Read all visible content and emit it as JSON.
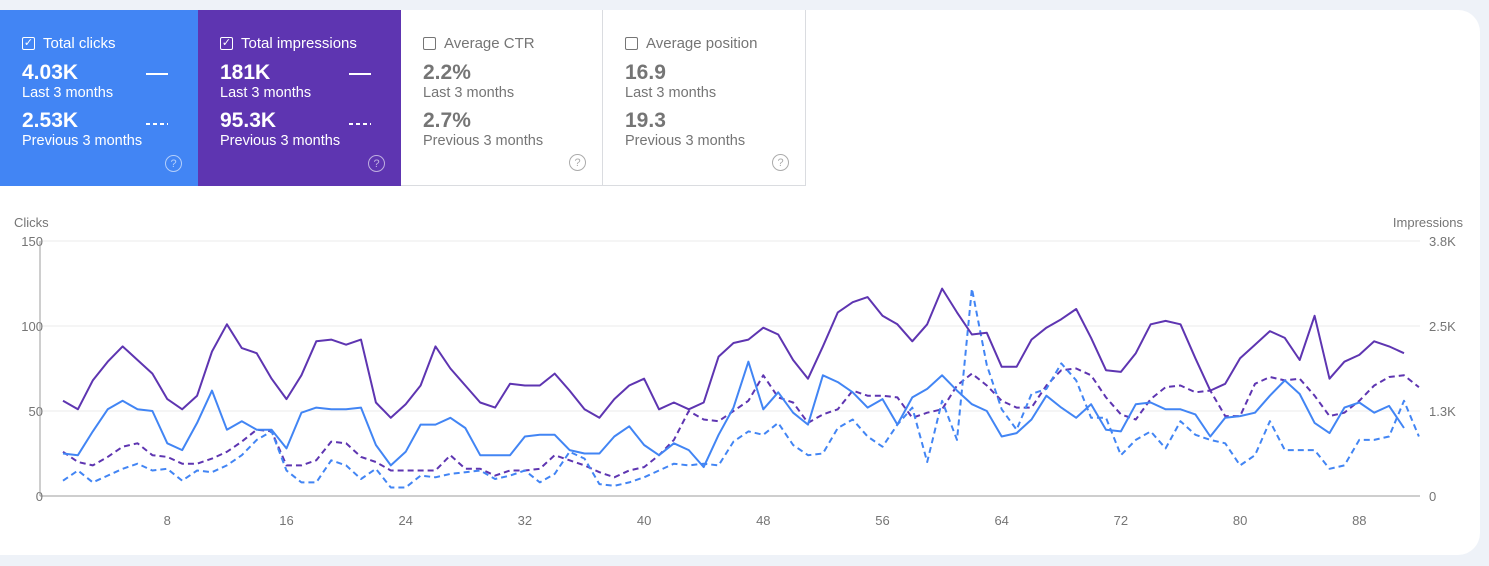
{
  "cards": [
    {
      "label": "Total clicks",
      "checked": true,
      "value": "4.03K",
      "value_label": "Last 3 months",
      "prev_value": "2.53K",
      "prev_label": "Previous 3 months",
      "color": "#4285f4"
    },
    {
      "label": "Total impressions",
      "checked": true,
      "value": "181K",
      "value_label": "Last 3 months",
      "prev_value": "95.3K",
      "prev_label": "Previous 3 months",
      "color": "#5e35b1"
    },
    {
      "label": "Average CTR",
      "checked": false,
      "value": "2.2%",
      "value_label": "Last 3 months",
      "prev_value": "2.7%",
      "prev_label": "Previous 3 months"
    },
    {
      "label": "Average position",
      "checked": false,
      "value": "16.9",
      "value_label": "Last 3 months",
      "prev_value": "19.3",
      "prev_label": "Previous 3 months"
    }
  ],
  "help_icon": "?",
  "check_mark": "✓",
  "chart_data": {
    "type": "line",
    "left_axis": {
      "label": "Clicks",
      "ticks": [
        "0",
        "50",
        "100",
        "150"
      ],
      "ylim": [
        0,
        150
      ]
    },
    "right_axis": {
      "label": "Impressions",
      "ticks": [
        "0",
        "1.3K",
        "2.5K",
        "3.8K"
      ],
      "ylim": [
        0,
        3750
      ]
    },
    "x_ticks": [
      8,
      16,
      24,
      32,
      40,
      48,
      56,
      64,
      72,
      80,
      88
    ],
    "grid": true,
    "series": [
      {
        "name": "Total clicks (Last 3 months)",
        "axis": "left",
        "color": "#4285f4",
        "dashed": false,
        "values": [
          25,
          24,
          38,
          51,
          56,
          51,
          50,
          31,
          27,
          43,
          62,
          39,
          44,
          39,
          39,
          28,
          49,
          52,
          51,
          51,
          52,
          30,
          18,
          26,
          42,
          42,
          46,
          40,
          24,
          24,
          24,
          35,
          36,
          36,
          27,
          25,
          25,
          35,
          41,
          30,
          24,
          31,
          27,
          17,
          36,
          52,
          79,
          51,
          61,
          49,
          42,
          71,
          67,
          61,
          52,
          57,
          42,
          58,
          63,
          71,
          62,
          54,
          50,
          35,
          37,
          45,
          59,
          52,
          46,
          54,
          39,
          38,
          54,
          55,
          51,
          51,
          48,
          35,
          46,
          47,
          49,
          59,
          68,
          60,
          43,
          37,
          52,
          55,
          49,
          53,
          40
        ]
      },
      {
        "name": "Total impressions (Last 3 months)",
        "axis": "right",
        "color": "#5e35b1",
        "dashed": false,
        "values": [
          1400,
          1275,
          1700,
          1975,
          2200,
          2000,
          1800,
          1425,
          1275,
          1475,
          2125,
          2525,
          2175,
          2100,
          1725,
          1425,
          1775,
          2275,
          2300,
          2225,
          2300,
          1375,
          1150,
          1350,
          1625,
          2200,
          1875,
          1625,
          1375,
          1300,
          1650,
          1625,
          1625,
          1800,
          1550,
          1275,
          1150,
          1425,
          1625,
          1725,
          1275,
          1375,
          1275,
          1375,
          2050,
          2250,
          2300,
          2475,
          2375,
          2000,
          1725,
          2200,
          2700,
          2850,
          2925,
          2650,
          2525,
          2275,
          2525,
          3050,
          2700,
          2375,
          2400,
          1900,
          1900,
          2300,
          2475,
          2600,
          2750,
          2325,
          1850,
          1825,
          2100,
          2525,
          2575,
          2525,
          2025,
          1550,
          1650,
          2025,
          2225,
          2425,
          2325,
          2000,
          2650,
          1725,
          1975,
          2075,
          2275,
          2200,
          2100
        ]
      },
      {
        "name": "Total clicks (Previous 3 months)",
        "axis": "left",
        "color": "#4285f4",
        "dashed": true,
        "values": [
          9,
          15,
          8,
          12,
          16,
          19,
          15,
          16,
          9,
          15,
          14,
          18,
          24,
          33,
          38,
          15,
          8,
          8,
          21,
          18,
          10,
          16,
          5,
          5,
          12,
          11,
          13,
          14,
          15,
          10,
          12,
          15,
          8,
          13,
          26,
          22,
          7,
          6,
          8,
          11,
          15,
          19,
          18,
          19,
          18,
          32,
          38,
          36,
          43,
          30,
          24,
          25,
          40,
          45,
          35,
          29,
          42,
          52,
          20,
          56,
          33,
          122,
          77,
          51,
          39,
          60,
          63,
          78,
          68,
          46,
          46,
          24,
          33,
          38,
          28,
          44,
          36,
          33,
          31,
          18,
          24,
          44,
          27,
          27,
          27,
          16,
          18,
          33,
          33,
          35,
          56,
          35
        ]
      },
      {
        "name": "Total impressions (Previous 3 months)",
        "axis": "right",
        "color": "#5e35b1",
        "dashed": true,
        "values": [
          650,
          500,
          450,
          575,
          725,
          775,
          600,
          575,
          475,
          475,
          550,
          650,
          800,
          975,
          950,
          450,
          450,
          525,
          800,
          775,
          575,
          500,
          375,
          375,
          375,
          375,
          600,
          400,
          400,
          300,
          375,
          375,
          400,
          600,
          525,
          450,
          350,
          275,
          375,
          425,
          600,
          825,
          1250,
          1125,
          1100,
          1250,
          1400,
          1775,
          1450,
          1375,
          1075,
          1200,
          1275,
          1550,
          1475,
          1475,
          1450,
          1150,
          1225,
          1275,
          1625,
          1800,
          1625,
          1400,
          1300,
          1300,
          1625,
          1850,
          1875,
          1775,
          1450,
          1200,
          1125,
          1425,
          1600,
          1625,
          1525,
          1550,
          1175,
          1175,
          1650,
          1750,
          1700,
          1725,
          1475,
          1175,
          1225,
          1400,
          1625,
          1750,
          1775,
          1600
        ]
      }
    ]
  }
}
